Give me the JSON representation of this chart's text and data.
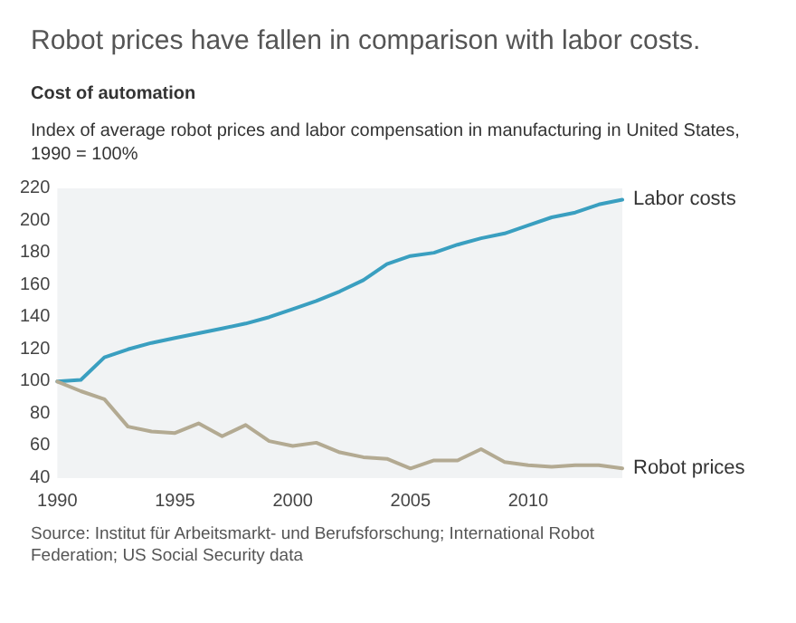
{
  "chart_data": {
    "type": "line",
    "title": "Robot prices have fallen in comparison with labor costs.",
    "subtitle": "Cost of automation",
    "ylabel": "Index of average robot prices and labor compensation in manufacturing in United States, 1990 = 100%",
    "x": [
      1990,
      1991,
      1992,
      1993,
      1994,
      1995,
      1996,
      1997,
      1998,
      1999,
      2000,
      2001,
      2002,
      2003,
      2004,
      2005,
      2006,
      2007,
      2008,
      2009,
      2010,
      2011,
      2012,
      2013,
      2014
    ],
    "series": [
      {
        "name": "Labor costs",
        "color": "#3a9fc0",
        "values": [
          100,
          101,
          115,
          120,
          124,
          127,
          130,
          133,
          136,
          140,
          145,
          150,
          156,
          163,
          173,
          178,
          180,
          185,
          189,
          192,
          197,
          202,
          205,
          210,
          213
        ]
      },
      {
        "name": "Robot prices",
        "color": "#b3aa92",
        "values": [
          100,
          94,
          89,
          72,
          69,
          68,
          74,
          66,
          73,
          63,
          60,
          62,
          56,
          53,
          52,
          46,
          51,
          51,
          58,
          50,
          48,
          47,
          48,
          48,
          46
        ]
      }
    ],
    "xlim": [
      1990,
      2014
    ],
    "xticks": [
      1990,
      1995,
      2000,
      2005,
      2010
    ],
    "ylim": [
      40,
      220
    ],
    "yticks": [
      40,
      60,
      80,
      100,
      120,
      140,
      160,
      180,
      200,
      220
    ],
    "grid": false,
    "legend": false,
    "marker": "none",
    "line_style": "solid",
    "annotations": [
      "Source: Institut für Arbeitsmarkt- und Berufsforschung; International Robot Federation; US Social Security data"
    ]
  }
}
